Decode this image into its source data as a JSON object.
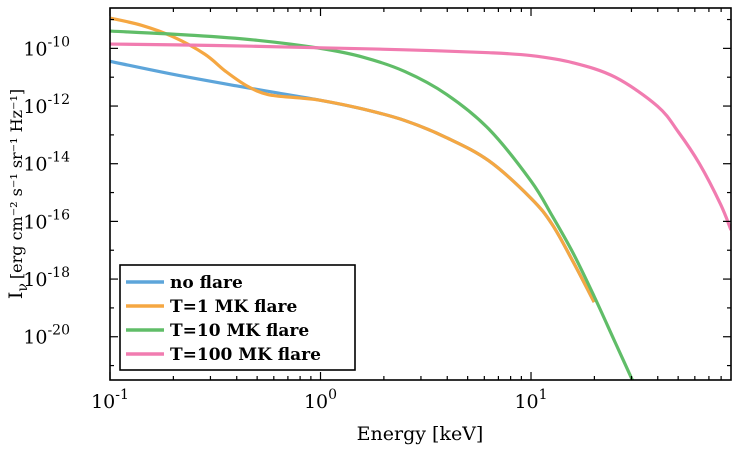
{
  "chart_data": {
    "type": "line",
    "title": "",
    "xlabel": "Energy [keV]",
    "ylabel": {
      "main": "I",
      "sub": "ν",
      "units": "[erg cm⁻² s⁻¹ sr⁻¹ Hz⁻¹]"
    },
    "xscale": "log",
    "yscale": "log",
    "xlim_log10": [
      -1,
      1.95
    ],
    "ylim_log10": [
      -21.5,
      -8.6
    ],
    "x_ticks": [
      {
        "exp": -1,
        "label_base": "10",
        "label_exp": "-1"
      },
      {
        "exp": 0,
        "label_base": "10",
        "label_exp": "0"
      },
      {
        "exp": 1,
        "label_base": "10",
        "label_exp": "1"
      }
    ],
    "y_ticks": [
      {
        "exp": -10,
        "label_base": "10",
        "label_exp": "-10"
      },
      {
        "exp": -12,
        "label_base": "10",
        "label_exp": "-12"
      },
      {
        "exp": -14,
        "label_base": "10",
        "label_exp": "-14"
      },
      {
        "exp": -16,
        "label_base": "10",
        "label_exp": "-16"
      },
      {
        "exp": -18,
        "label_base": "10",
        "label_exp": "-18"
      },
      {
        "exp": -20,
        "label_base": "10",
        "label_exp": "-20"
      }
    ],
    "legend_position": "lower-left",
    "series": [
      {
        "name": "no flare",
        "color": "#5DA5DA",
        "points_log10": [
          [
            -1,
            -10.45
          ],
          [
            -0.7,
            -10.9
          ],
          [
            -0.4,
            -11.3
          ],
          [
            -0.2,
            -11.55
          ],
          [
            0,
            -11.8
          ],
          [
            0.2,
            -12.1
          ],
          [
            0.4,
            -12.5
          ],
          [
            0.6,
            -13.1
          ],
          [
            0.8,
            -13.9
          ],
          [
            1,
            -15.2
          ],
          [
            1.1,
            -16.1
          ],
          [
            1.2,
            -17.4
          ],
          [
            1.3,
            -18.8
          ]
        ]
      },
      {
        "name": "T=1 MK flare",
        "color": "#F5A742",
        "points_log10": [
          [
            -1,
            -8.95
          ],
          [
            -0.85,
            -9.2
          ],
          [
            -0.7,
            -9.6
          ],
          [
            -0.55,
            -10.2
          ],
          [
            -0.45,
            -10.8
          ],
          [
            -0.35,
            -11.3
          ],
          [
            -0.25,
            -11.6
          ],
          [
            -0.1,
            -11.72
          ],
          [
            0,
            -11.8
          ],
          [
            0.2,
            -12.1
          ],
          [
            0.4,
            -12.5
          ],
          [
            0.6,
            -13.1
          ],
          [
            0.8,
            -13.9
          ],
          [
            1,
            -15.2
          ],
          [
            1.1,
            -16.1
          ],
          [
            1.2,
            -17.4
          ],
          [
            1.3,
            -18.8
          ]
        ]
      },
      {
        "name": "T=10 MK flare",
        "color": "#60BD68",
        "points_log10": [
          [
            -1,
            -9.4
          ],
          [
            -0.6,
            -9.55
          ],
          [
            -0.3,
            -9.72
          ],
          [
            0,
            -10.0
          ],
          [
            0.2,
            -10.3
          ],
          [
            0.4,
            -10.8
          ],
          [
            0.6,
            -11.6
          ],
          [
            0.8,
            -12.8
          ],
          [
            1,
            -14.6
          ],
          [
            1.1,
            -15.8
          ],
          [
            1.2,
            -17.1
          ],
          [
            1.3,
            -18.6
          ],
          [
            1.4,
            -20.2
          ],
          [
            1.5,
            -21.8
          ]
        ]
      },
      {
        "name": "T=100 MK flare",
        "color": "#F17CB0",
        "points_log10": [
          [
            -1,
            -9.85
          ],
          [
            -0.5,
            -9.9
          ],
          [
            0,
            -9.98
          ],
          [
            0.4,
            -10.05
          ],
          [
            0.8,
            -10.15
          ],
          [
            1,
            -10.25
          ],
          [
            1.2,
            -10.5
          ],
          [
            1.4,
            -11.0
          ],
          [
            1.6,
            -12.0
          ],
          [
            1.7,
            -12.9
          ],
          [
            1.8,
            -14.0
          ],
          [
            1.9,
            -15.4
          ],
          [
            1.95,
            -16.3
          ]
        ]
      }
    ]
  }
}
